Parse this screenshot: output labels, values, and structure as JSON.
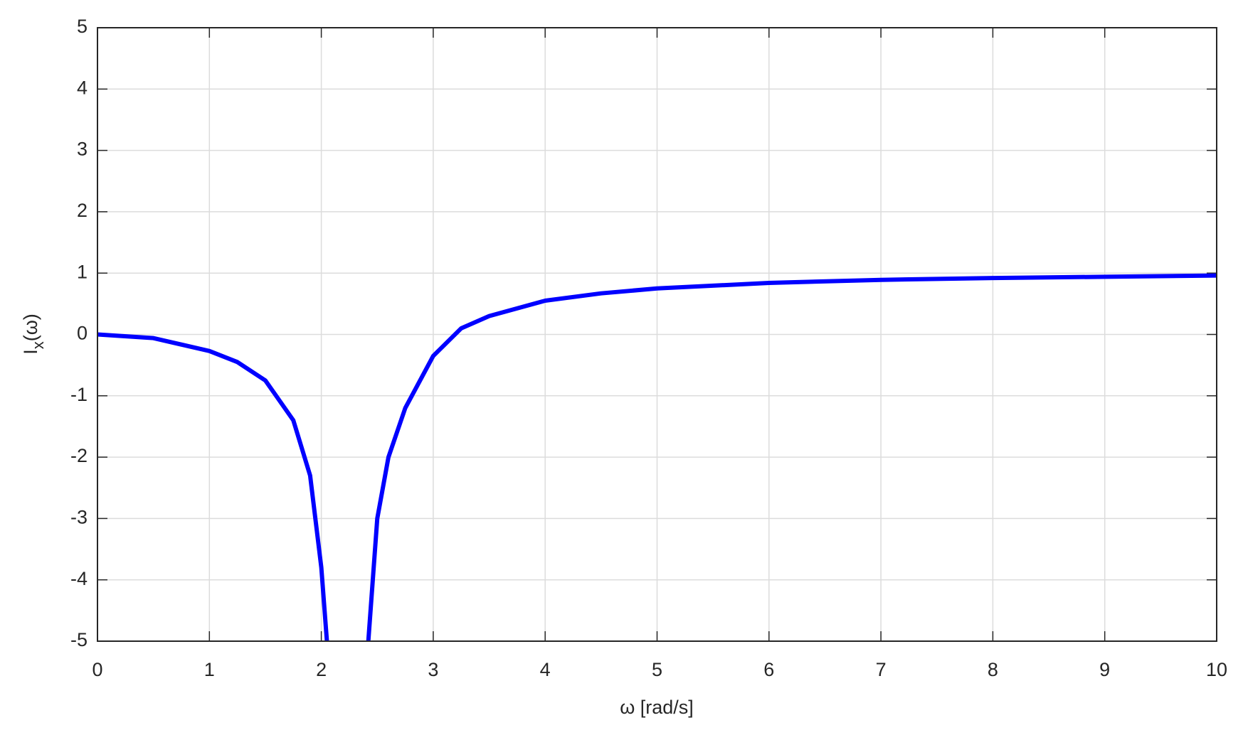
{
  "chart_data": {
    "type": "line",
    "xlabel": "ω [rad/s]",
    "ylabel": [
      "I",
      "x",
      "(ω)"
    ],
    "x": [
      0,
      0.5,
      1,
      1.25,
      1.5,
      1.75,
      1.9,
      2,
      2.05,
      2.2,
      2.42,
      2.5,
      2.6,
      2.75,
      3,
      3.25,
      3.5,
      4,
      4.5,
      5,
      6,
      7,
      8,
      9,
      10
    ],
    "values": [
      0,
      -0.06,
      -0.27,
      -0.45,
      -0.75,
      -1.4,
      -2.3,
      -3.8,
      -5,
      null,
      -5,
      -3.0,
      -2.0,
      -1.2,
      -0.35,
      0.1,
      0.3,
      0.55,
      0.67,
      0.75,
      0.84,
      0.89,
      0.92,
      0.94,
      0.96
    ],
    "color": "#0000ff",
    "xlim": [
      0,
      10
    ],
    "xticks": [
      0,
      1,
      2,
      3,
      4,
      5,
      6,
      7,
      8,
      9,
      10
    ],
    "ylim": [
      -5,
      5
    ],
    "yticks": [
      -5,
      -4,
      -3,
      -2,
      -1,
      0,
      1,
      2,
      3,
      4,
      5
    ],
    "grid": true
  }
}
